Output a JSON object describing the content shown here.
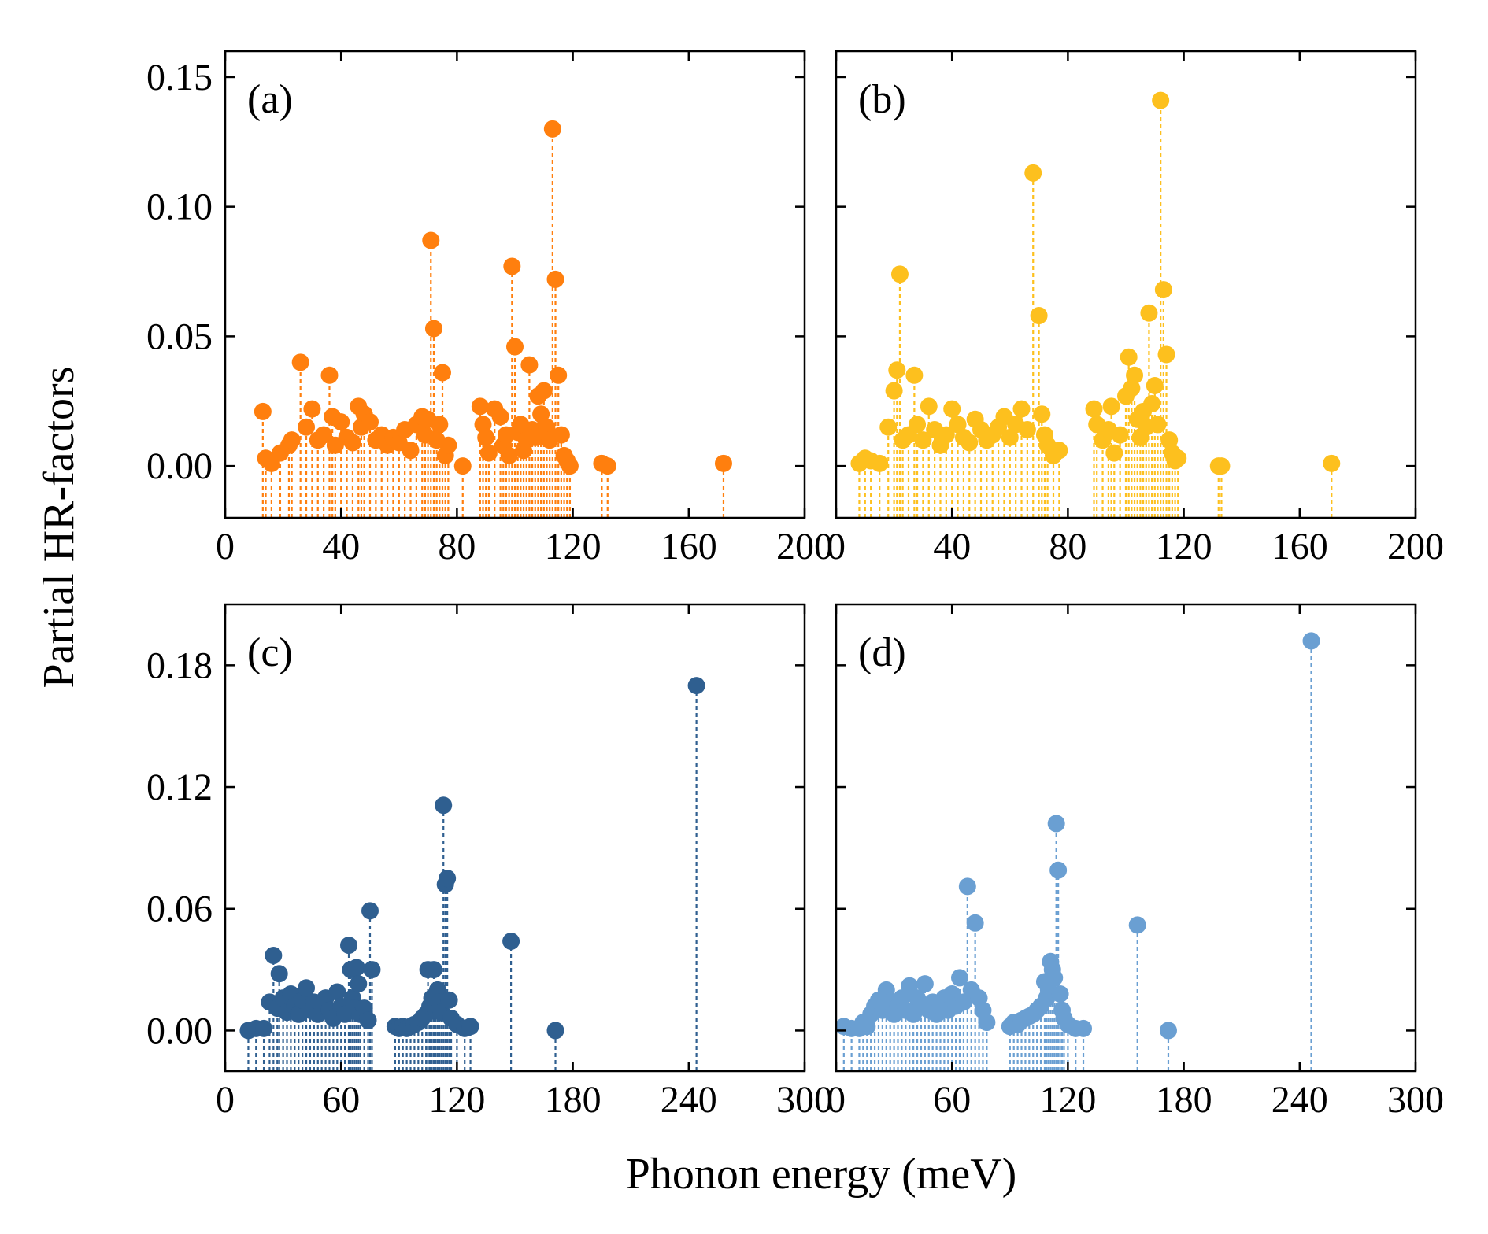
{
  "figure": {
    "ylabel": "Partial HR-factors",
    "xlabel": "Phonon energy (meV)"
  },
  "colors": {
    "a": "#ff7f0e",
    "b": "#fdc01e",
    "c": "#2f5f90",
    "d": "#6a9fd2"
  },
  "chart_data": [
    {
      "type": "scatter",
      "panel_label": "(a)",
      "xlim": [
        0,
        200
      ],
      "ylim": [
        -0.02,
        0.16
      ],
      "xticks": [
        0,
        40,
        80,
        120,
        160,
        200
      ],
      "yticks": [
        0.0,
        0.05,
        0.1,
        0.15
      ],
      "ytick_labels": [
        "0.00",
        "0.05",
        "0.10",
        "0.15"
      ],
      "show_yticklabels": true,
      "marker_style": "stem",
      "series": [
        {
          "x": [
            13,
            14,
            16,
            19,
            22,
            23,
            26,
            28,
            30,
            32,
            34,
            36,
            37,
            38,
            40,
            42,
            44,
            46,
            47,
            48,
            50,
            52,
            54,
            56,
            58,
            60,
            62,
            64,
            66,
            68,
            69,
            70,
            71,
            72,
            73,
            74,
            75,
            76,
            77,
            82,
            88,
            89,
            90,
            91,
            93,
            95,
            96,
            97,
            98,
            99,
            100,
            101,
            102,
            103,
            104,
            105,
            106,
            107,
            108,
            109,
            110,
            111,
            112,
            113,
            114,
            115,
            116,
            117,
            118,
            119,
            130,
            132,
            172
          ],
          "y": [
            0.021,
            0.003,
            0.001,
            0.005,
            0.008,
            0.01,
            0.04,
            0.015,
            0.022,
            0.01,
            0.012,
            0.035,
            0.019,
            0.008,
            0.017,
            0.011,
            0.009,
            0.023,
            0.015,
            0.02,
            0.017,
            0.01,
            0.012,
            0.008,
            0.011,
            0.009,
            0.014,
            0.006,
            0.016,
            0.019,
            0.012,
            0.018,
            0.087,
            0.053,
            0.01,
            0.016,
            0.036,
            0.004,
            0.008,
            0.0,
            0.023,
            0.016,
            0.011,
            0.005,
            0.022,
            0.019,
            0.008,
            0.012,
            0.004,
            0.077,
            0.046,
            0.013,
            0.016,
            0.006,
            0.01,
            0.039,
            0.014,
            0.011,
            0.027,
            0.02,
            0.029,
            0.015,
            0.01,
            0.13,
            0.072,
            0.035,
            0.012,
            0.004,
            0.002,
            0.0,
            0.001,
            0.0,
            0.001
          ]
        }
      ]
    },
    {
      "type": "scatter",
      "panel_label": "(b)",
      "xlim": [
        0,
        200
      ],
      "ylim": [
        -0.02,
        0.16
      ],
      "xticks": [
        0,
        40,
        80,
        120,
        160,
        200
      ],
      "yticks": [
        0.0,
        0.05,
        0.1,
        0.15
      ],
      "ytick_labels": [
        "0.00",
        "0.05",
        "0.10",
        "0.15"
      ],
      "show_yticklabels": false,
      "marker_style": "stem",
      "series": [
        {
          "x": [
            8,
            10,
            12,
            15,
            18,
            20,
            21,
            22,
            23,
            25,
            27,
            28,
            30,
            32,
            34,
            36,
            38,
            40,
            42,
            44,
            46,
            48,
            50,
            52,
            54,
            56,
            58,
            60,
            62,
            64,
            66,
            68,
            70,
            71,
            72,
            73,
            75,
            77,
            89,
            90,
            92,
            94,
            95,
            96,
            98,
            100,
            101,
            102,
            103,
            104,
            105,
            106,
            107,
            108,
            109,
            110,
            111,
            112,
            113,
            114,
            115,
            116,
            117,
            118,
            132,
            133,
            171
          ],
          "y": [
            0.001,
            0.003,
            0.002,
            0.001,
            0.015,
            0.029,
            0.037,
            0.074,
            0.01,
            0.012,
            0.035,
            0.016,
            0.01,
            0.023,
            0.014,
            0.008,
            0.012,
            0.022,
            0.016,
            0.011,
            0.009,
            0.018,
            0.014,
            0.01,
            0.012,
            0.015,
            0.019,
            0.011,
            0.016,
            0.022,
            0.014,
            0.113,
            0.058,
            0.02,
            0.012,
            0.008,
            0.004,
            0.006,
            0.022,
            0.016,
            0.01,
            0.014,
            0.023,
            0.005,
            0.012,
            0.027,
            0.042,
            0.03,
            0.035,
            0.018,
            0.011,
            0.021,
            0.015,
            0.059,
            0.024,
            0.031,
            0.016,
            0.141,
            0.068,
            0.043,
            0.01,
            0.005,
            0.002,
            0.003,
            0.0,
            0.0,
            0.001
          ]
        }
      ]
    },
    {
      "type": "scatter",
      "panel_label": "(c)",
      "xlim": [
        0,
        300
      ],
      "ylim": [
        -0.02,
        0.21
      ],
      "xticks": [
        0,
        60,
        120,
        180,
        240,
        300
      ],
      "yticks": [
        0.0,
        0.06,
        0.12,
        0.18
      ],
      "ytick_labels": [
        "0.00",
        "0.06",
        "0.12",
        "0.18"
      ],
      "show_yticklabels": true,
      "marker_style": "stem",
      "series": [
        {
          "x": [
            12,
            16,
            20,
            23,
            25,
            27,
            28,
            30,
            32,
            34,
            36,
            38,
            40,
            42,
            44,
            46,
            48,
            50,
            52,
            54,
            56,
            58,
            60,
            62,
            64,
            65,
            66,
            67,
            68,
            69,
            70,
            72,
            74,
            75,
            76,
            88,
            90,
            92,
            94,
            96,
            98,
            100,
            102,
            104,
            105,
            106,
            107,
            108,
            109,
            110,
            111,
            112,
            113,
            114,
            115,
            116,
            117,
            120,
            124,
            127,
            148,
            171,
            244
          ],
          "y": [
            0.0,
            0.001,
            0.001,
            0.014,
            0.037,
            0.011,
            0.028,
            0.016,
            0.009,
            0.018,
            0.012,
            0.008,
            0.015,
            0.021,
            0.01,
            0.014,
            0.008,
            0.012,
            0.016,
            0.01,
            0.006,
            0.019,
            0.012,
            0.008,
            0.042,
            0.03,
            0.016,
            0.011,
            0.031,
            0.023,
            0.008,
            0.011,
            0.005,
            0.059,
            0.03,
            0.002,
            0.001,
            0.002,
            0.001,
            0.002,
            0.003,
            0.004,
            0.006,
            0.008,
            0.03,
            0.012,
            0.016,
            0.03,
            0.01,
            0.02,
            0.014,
            0.009,
            0.111,
            0.072,
            0.075,
            0.015,
            0.006,
            0.003,
            0.001,
            0.002,
            0.044,
            0.0,
            0.17
          ]
        }
      ]
    },
    {
      "type": "scatter",
      "panel_label": "(d)",
      "xlim": [
        0,
        300
      ],
      "ylim": [
        -0.02,
        0.21
      ],
      "xticks": [
        0,
        60,
        120,
        180,
        240,
        300
      ],
      "yticks": [
        0.0,
        0.06,
        0.12,
        0.18
      ],
      "ytick_labels": [
        "0.00",
        "0.06",
        "0.12",
        "0.18"
      ],
      "show_yticklabels": false,
      "marker_style": "stem",
      "series": [
        {
          "x": [
            4,
            8,
            12,
            14,
            16,
            18,
            20,
            22,
            24,
            26,
            28,
            30,
            32,
            34,
            36,
            38,
            40,
            42,
            44,
            46,
            48,
            50,
            52,
            54,
            56,
            58,
            60,
            62,
            64,
            66,
            68,
            70,
            72,
            74,
            76,
            78,
            90,
            92,
            94,
            96,
            98,
            100,
            102,
            104,
            106,
            108,
            109,
            110,
            111,
            112,
            113,
            114,
            115,
            116,
            117,
            118,
            120,
            124,
            128,
            156,
            172,
            246
          ],
          "y": [
            0.002,
            0.001,
            0.001,
            0.004,
            0.002,
            0.008,
            0.012,
            0.015,
            0.01,
            0.02,
            0.014,
            0.008,
            0.012,
            0.016,
            0.01,
            0.022,
            0.008,
            0.016,
            0.012,
            0.023,
            0.01,
            0.014,
            0.008,
            0.012,
            0.016,
            0.01,
            0.018,
            0.012,
            0.026,
            0.014,
            0.071,
            0.02,
            0.053,
            0.016,
            0.01,
            0.004,
            0.002,
            0.004,
            0.003,
            0.005,
            0.006,
            0.007,
            0.008,
            0.01,
            0.012,
            0.024,
            0.016,
            0.02,
            0.034,
            0.03,
            0.026,
            0.102,
            0.079,
            0.018,
            0.01,
            0.006,
            0.003,
            0.001,
            0.001,
            0.052,
            0.0,
            0.192
          ]
        }
      ]
    }
  ]
}
